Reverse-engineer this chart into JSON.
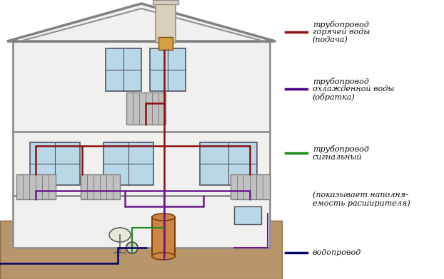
{
  "bg": "#ffffff",
  "wall_fill": "#f0f0ee",
  "wall_color": "#909090",
  "wall_lw": 2.0,
  "roof_color": "#808080",
  "roof_lw": 2.5,
  "window_fill": "#b8d8e8",
  "window_border": "#555566",
  "window_lw": 1.2,
  "ground_fill": "#b8956a",
  "ground_edge": "#8a6a40",
  "radiator_fill": "#c0c0c0",
  "radiator_edge": "#808080",
  "chimney_fill": "#d8d0b8",
  "chimney_edge": "#909090",
  "boiler_fill": "#cd853f",
  "boiler_edge": "#7a4010",
  "exp_fill": "#d4a040",
  "exp_edge": "#7a5010",
  "hot_color": "#8b1010",
  "ret_color": "#6b1a8b",
  "sig_color": "#1a8b1a",
  "wat_color": "#00006b",
  "pipe_lw": 1.8,
  "legend_items": [
    {
      "color": "#8b1010",
      "lines": [
        "трубопровод",
        "горячей воды",
        "(подача)"
      ]
    },
    {
      "color": "#4b0082",
      "lines": [
        "трубопровод",
        "охлажденной воды",
        "(обратка)"
      ]
    },
    {
      "color": "#1a8b1a",
      "lines": [
        "трубопровод",
        "сигнальный"
      ]
    },
    {
      "color": null,
      "lines": [
        "(показывает наполня-",
        "емость расширителя)"
      ]
    },
    {
      "color": "#00006b",
      "lines": [
        "водопровод"
      ]
    }
  ]
}
